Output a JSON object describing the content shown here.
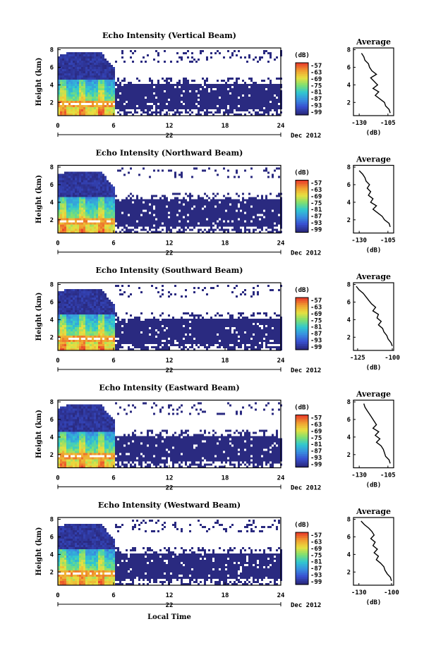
{
  "figure": {
    "xlabel_bottom": "Local Time",
    "date_label": "Dec 2012",
    "day_label": "22",
    "colorbar_unit": "(dB)",
    "colorbar_ticks": [
      "-57",
      "-63",
      "-69",
      "-75",
      "-81",
      "-87",
      "-93",
      "-99"
    ],
    "colorbar_colors": [
      "#e8402a",
      "#f0a030",
      "#e8e040",
      "#80e070",
      "#30c8d0",
      "#3890e0",
      "#3850d0",
      "#2a2a80"
    ]
  },
  "chart_data": [
    {
      "type": "heatmap",
      "title": "Echo Intensity (Vertical Beam)",
      "ylabel": "Height (km)",
      "xticks": [
        "0",
        "6",
        "12",
        "18",
        "24"
      ],
      "xtick_values": [
        0,
        6,
        12,
        18,
        24
      ],
      "yticks": [
        "2",
        "4",
        "6",
        "8"
      ],
      "xlim": [
        0,
        24
      ],
      "ylim": [
        0.5,
        8.2
      ],
      "colorbar": {
        "label": "(dB)",
        "range": [
          -99,
          -57
        ]
      },
      "structure": {
        "rain_until_hour": 6.0,
        "rain_top_km": 7.6,
        "bright_band_km": 1.8,
        "layer_bottom_km": 1.0,
        "layer_top_km": 4.0,
        "sparse_top_km": 7.8
      },
      "average_profile": {
        "title": "Average",
        "xlabel": "(dB)",
        "xticks": [
          "-130",
          "-105"
        ],
        "xlim": [
          -135,
          -100
        ],
        "ylim": [
          0.5,
          8.2
        ],
        "yticks": [
          "2",
          "4",
          "6",
          "8"
        ],
        "heights": [
          7.6,
          7.2,
          6.8,
          6.4,
          6.0,
          5.6,
          5.2,
          4.8,
          4.4,
          4.0,
          3.6,
          3.2,
          2.8,
          2.4,
          2.0,
          1.6,
          1.2,
          0.8
        ],
        "values": [
          -128,
          -126,
          -125,
          -122,
          -121,
          -119,
          -115,
          -120,
          -117,
          -114,
          -118,
          -113,
          -116,
          -112,
          -108,
          -107,
          -104,
          -103
        ]
      }
    },
    {
      "type": "heatmap",
      "title": "Echo Intensity (Northward Beam)",
      "ylabel": "Height (km)",
      "xticks": [
        "0",
        "6",
        "12",
        "18",
        "24"
      ],
      "xtick_values": [
        0,
        6,
        12,
        18,
        24
      ],
      "yticks": [
        "2",
        "4",
        "6",
        "8"
      ],
      "xlim": [
        0,
        24
      ],
      "ylim": [
        0.5,
        8.2
      ],
      "colorbar": {
        "label": "(dB)",
        "range": [
          -99,
          -57
        ]
      },
      "structure": {
        "rain_until_hour": 6.0,
        "rain_top_km": 7.4,
        "bright_band_km": 1.8,
        "layer_bottom_km": 1.0,
        "layer_top_km": 4.2,
        "sparse_top_km": 7.8
      },
      "average_profile": {
        "title": "Average",
        "xlabel": "(dB)",
        "xticks": [
          "-130",
          "-105"
        ],
        "xlim": [
          -135,
          -100
        ],
        "ylim": [
          0.5,
          8.2
        ],
        "yticks": [
          "2",
          "4",
          "6",
          "8"
        ],
        "heights": [
          7.6,
          7.2,
          6.8,
          6.4,
          6.0,
          5.6,
          5.2,
          4.8,
          4.4,
          4.0,
          3.6,
          3.2,
          2.8,
          2.4,
          2.0,
          1.6,
          1.2
        ],
        "values": [
          -130,
          -127,
          -125,
          -124,
          -121,
          -123,
          -120,
          -122,
          -118,
          -120,
          -115,
          -118,
          -114,
          -110,
          -108,
          -104,
          -103
        ]
      }
    },
    {
      "type": "heatmap",
      "title": "Echo Intensity (Southward Beam)",
      "ylabel": "Height (km)",
      "xticks": [
        "0",
        "6",
        "12",
        "18",
        "24"
      ],
      "xtick_values": [
        0,
        6,
        12,
        18,
        24
      ],
      "yticks": [
        "2",
        "4",
        "6",
        "8"
      ],
      "xlim": [
        0,
        24
      ],
      "ylim": [
        0.5,
        8.2
      ],
      "colorbar": {
        "label": "(dB)",
        "range": [
          -99,
          -57
        ]
      },
      "structure": {
        "rain_until_hour": 6.0,
        "rain_top_km": 7.4,
        "bright_band_km": 1.8,
        "layer_bottom_km": 1.0,
        "layer_top_km": 4.0,
        "sparse_top_km": 7.8
      },
      "average_profile": {
        "title": "Average",
        "xlabel": "(dB)",
        "xticks": [
          "-125",
          "-100"
        ],
        "xlim": [
          -128,
          -99
        ],
        "ylim": [
          0.5,
          8.2
        ],
        "yticks": [
          "2",
          "4",
          "6",
          "8"
        ],
        "heights": [
          7.8,
          7.4,
          7.0,
          6.6,
          6.2,
          5.8,
          5.4,
          5.0,
          4.6,
          4.2,
          3.8,
          3.4,
          3.0,
          2.6,
          2.2,
          1.8,
          1.4,
          1.0
        ],
        "values": [
          -126,
          -124,
          -121,
          -119,
          -117,
          -115,
          -112,
          -114,
          -110,
          -111,
          -108,
          -110,
          -107,
          -106,
          -104,
          -103,
          -101,
          -100
        ]
      }
    },
    {
      "type": "heatmap",
      "title": "Echo Intensity (Eastward Beam)",
      "ylabel": "Height (km)",
      "xticks": [
        "0",
        "6",
        "12",
        "18",
        "24"
      ],
      "xtick_values": [
        0,
        6,
        12,
        18,
        24
      ],
      "yticks": [
        "2",
        "4",
        "6",
        "8"
      ],
      "xlim": [
        0,
        24
      ],
      "ylim": [
        0.5,
        8.2
      ],
      "colorbar": {
        "label": "(dB)",
        "range": [
          -99,
          -57
        ]
      },
      "structure": {
        "rain_until_hour": 6.0,
        "rain_top_km": 7.6,
        "bright_band_km": 1.8,
        "layer_bottom_km": 1.0,
        "layer_top_km": 4.0,
        "sparse_top_km": 7.8
      },
      "average_profile": {
        "title": "Average",
        "xlabel": "(dB)",
        "xticks": [
          "-130",
          "-105"
        ],
        "xlim": [
          -135,
          -100
        ],
        "ylim": [
          0.5,
          8.2
        ],
        "yticks": [
          "2",
          "4",
          "6",
          "8"
        ],
        "heights": [
          7.8,
          7.4,
          7.0,
          6.6,
          6.2,
          5.8,
          5.4,
          5.0,
          4.6,
          4.2,
          3.8,
          3.4,
          3.0,
          2.6,
          2.2,
          1.8,
          1.4,
          1.0
        ],
        "values": [
          -126,
          -125,
          -123,
          -121,
          -119,
          -117,
          -115,
          -118,
          -113,
          -116,
          -112,
          -115,
          -111,
          -109,
          -108,
          -107,
          -104,
          -103
        ]
      }
    },
    {
      "type": "heatmap",
      "title": "Echo Intensity (Westward Beam)",
      "ylabel": "Height (km)",
      "xticks": [
        "0",
        "6",
        "12",
        "18",
        "24"
      ],
      "xtick_values": [
        0,
        6,
        12,
        18,
        24
      ],
      "yticks": [
        "2",
        "4",
        "6",
        "8"
      ],
      "xlim": [
        0,
        24
      ],
      "ylim": [
        0.5,
        8.2
      ],
      "colorbar": {
        "label": "(dB)",
        "range": [
          -99,
          -57
        ]
      },
      "structure": {
        "rain_until_hour": 6.0,
        "rain_top_km": 7.4,
        "bright_band_km": 1.8,
        "layer_bottom_km": 1.0,
        "layer_top_km": 4.0,
        "sparse_top_km": 7.8
      },
      "average_profile": {
        "title": "Average",
        "xlabel": "(dB)",
        "xticks": [
          "-130",
          "-100"
        ],
        "xlim": [
          -135,
          -98
        ],
        "ylim": [
          0.5,
          8.2
        ],
        "yticks": [
          "2",
          "4",
          "6",
          "8"
        ],
        "heights": [
          7.8,
          7.4,
          7.0,
          6.6,
          6.2,
          5.8,
          5.4,
          5.0,
          4.6,
          4.2,
          3.8,
          3.4,
          3.0,
          2.6,
          2.2,
          1.8,
          1.4,
          1.0
        ],
        "values": [
          -128,
          -125,
          -121,
          -118,
          -116,
          -119,
          -115,
          -117,
          -113,
          -116,
          -112,
          -114,
          -110,
          -107,
          -106,
          -104,
          -101,
          -100
        ]
      }
    }
  ]
}
